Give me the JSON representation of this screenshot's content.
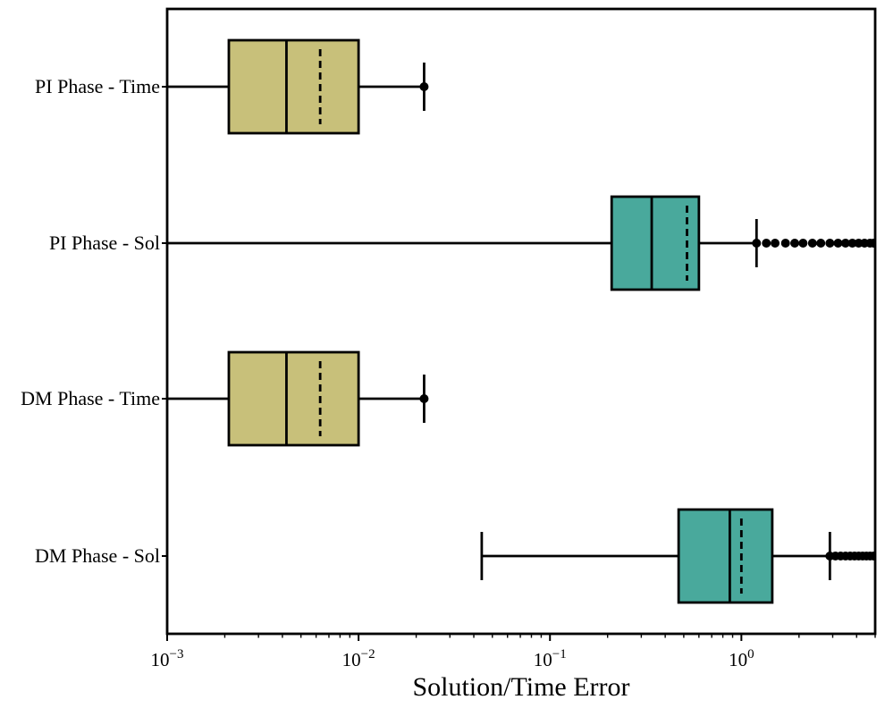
{
  "chart_data": {
    "type": "boxplot",
    "title": "",
    "xlabel": "Solution/Time Error",
    "ylabel": "",
    "xscale": "log",
    "xlim": [
      0.001,
      5.0
    ],
    "xticks": [
      {
        "value": 0.001,
        "base": "10",
        "exp": "−3"
      },
      {
        "value": 0.01,
        "base": "10",
        "exp": "−2"
      },
      {
        "value": 0.1,
        "base": "10",
        "exp": "−1"
      },
      {
        "value": 1,
        "base": "10",
        "exp": "0"
      }
    ],
    "categories": [
      "PI Phase - Time",
      "PI Phase - Sol",
      "DM Phase - Time",
      "DM Phase - Sol"
    ],
    "colors": {
      "time": "#c8c07a",
      "sol": "#49a99c",
      "line": "#000000"
    },
    "boxes": [
      {
        "category": "PI Phase - Time",
        "color_key": "time",
        "whisker_low": 0.001,
        "q1": 0.0021,
        "median": 0.0042,
        "mean": 0.0063,
        "q3": 0.01,
        "whisker_high": 0.022,
        "fliers": [
          0.022
        ]
      },
      {
        "category": "PI Phase - Sol",
        "color_key": "sol",
        "whisker_low": 0.001,
        "q1": 0.21,
        "median": 0.34,
        "mean": 0.52,
        "q3": 0.6,
        "whisker_high": 1.2,
        "fliers": [
          1.2,
          1.35,
          1.5,
          1.7,
          1.9,
          2.1,
          2.35,
          2.6,
          2.9,
          3.2,
          3.5,
          3.8,
          4.1,
          4.4,
          4.7,
          4.9
        ]
      },
      {
        "category": "DM Phase - Time",
        "color_key": "time",
        "whisker_low": 0.001,
        "q1": 0.0021,
        "median": 0.0042,
        "mean": 0.0063,
        "q3": 0.01,
        "whisker_high": 0.022,
        "fliers": [
          0.022
        ]
      },
      {
        "category": "DM Phase - Sol",
        "color_key": "sol",
        "whisker_low": 0.044,
        "q1": 0.47,
        "median": 0.87,
        "mean": 1.0,
        "q3": 1.45,
        "whisker_high": 2.9,
        "fliers": [
          2.9,
          3.1,
          3.3,
          3.5,
          3.7,
          3.9,
          4.1,
          4.3,
          4.5,
          4.7,
          4.9
        ]
      }
    ]
  }
}
